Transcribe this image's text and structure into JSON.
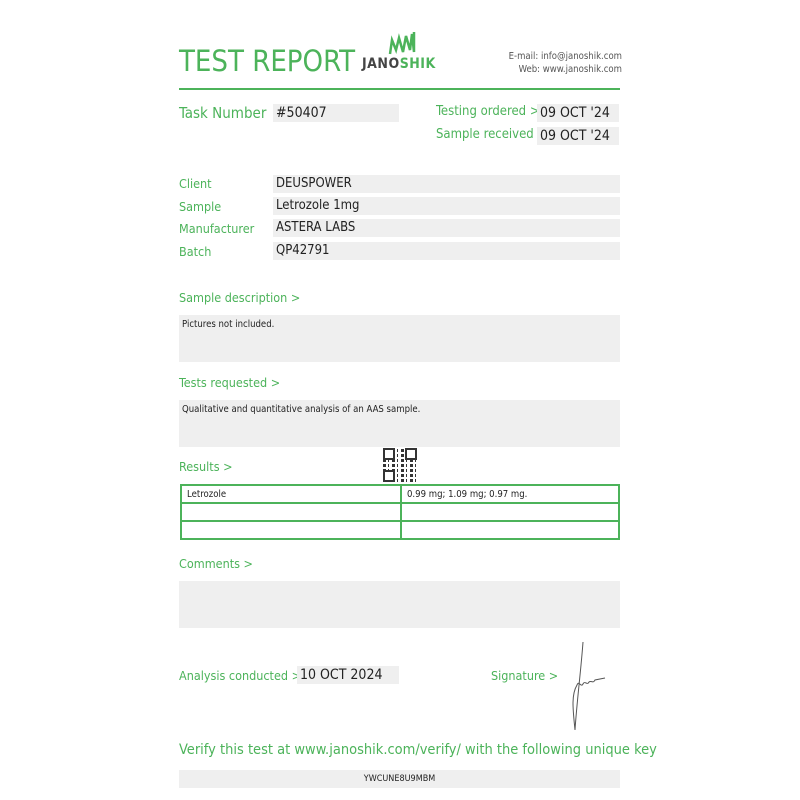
{
  "header": {
    "title": "TEST REPORT",
    "logo_text_dark": "JANO",
    "logo_text_green": "SHIK",
    "email": "E-mail: info@janoshik.com",
    "web": "Web: www.janoshik.com"
  },
  "task": {
    "label": "Task Number",
    "value": "#50407"
  },
  "dates": {
    "ordered_label": "Testing ordered  >",
    "ordered_value": "09 OCT '24",
    "received_label": "Sample received >",
    "received_value": "09 OCT '24"
  },
  "info": [
    {
      "label": "Client",
      "value": "DEUSPOWER"
    },
    {
      "label": "Sample",
      "value": "Letrozole 1mg"
    },
    {
      "label": "Manufacturer",
      "value": "ASTERA LABS"
    },
    {
      "label": "Batch",
      "value": "QP42791"
    }
  ],
  "sample_description": {
    "label": "Sample description >",
    "value": "Pictures not included."
  },
  "tests_requested": {
    "label": "Tests requested >",
    "value": "Qualitative and quantitative analysis of an AAS sample."
  },
  "results": {
    "label": "Results >",
    "rows": [
      [
        "Letrozole",
        "0.99 mg; 1.09 mg; 0.97 mg."
      ],
      [
        "",
        ""
      ],
      [
        "",
        ""
      ]
    ]
  },
  "comments": {
    "label": "Comments >",
    "value": ""
  },
  "analysis": {
    "label": "Analysis conducted >",
    "value": "10 OCT 2024"
  },
  "signature": {
    "label": "Signature >"
  },
  "verify": {
    "text": "Verify this test at www.janoshik.com/verify/ with the following unique key",
    "key": "YWCUNE8U9MBM"
  },
  "colors": {
    "accent": "#4cb35a",
    "field_bg": "#efefef"
  }
}
